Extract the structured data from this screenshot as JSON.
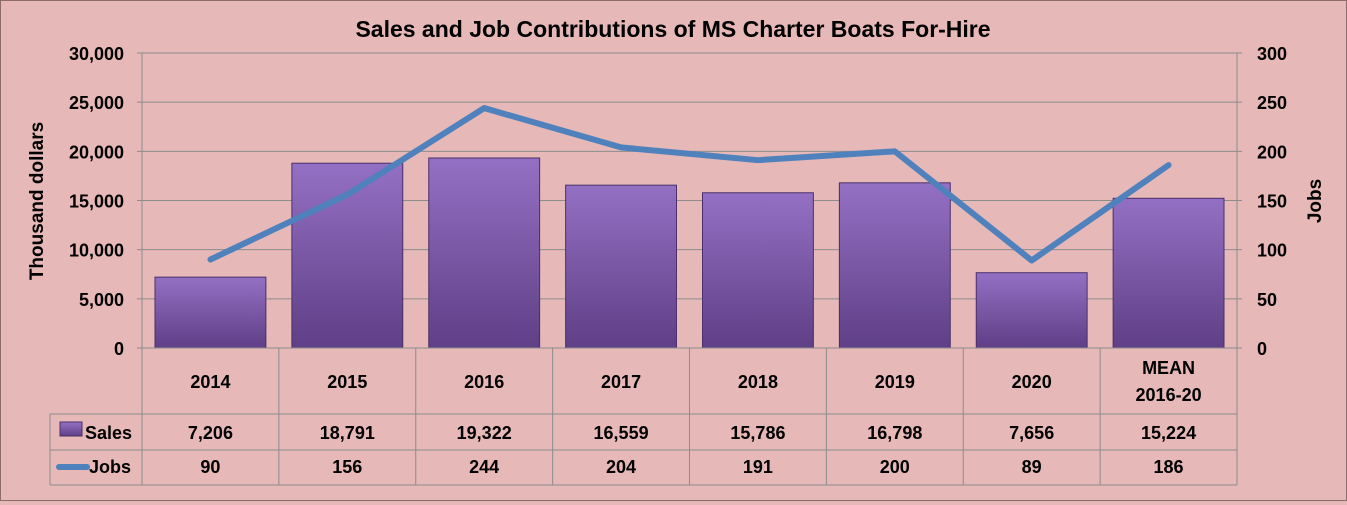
{
  "chart_data": {
    "type": "bar",
    "title": "Sales and Job Contributions of MS Charter Boats For-Hire",
    "ylabel_left": "Thousand dollars",
    "ylabel_right": "Jobs",
    "ylim_left": [
      0,
      30000
    ],
    "ylim_right": [
      0,
      300
    ],
    "yticks_left": [
      "0",
      "5,000",
      "10,000",
      "15,000",
      "20,000",
      "25,000",
      "30,000"
    ],
    "yticks_right": [
      "0",
      "50",
      "100",
      "150",
      "200",
      "250",
      "300"
    ],
    "grid": true,
    "legend": "data-table",
    "categories": [
      {
        "line1": "2014",
        "line2": ""
      },
      {
        "line1": "2015",
        "line2": ""
      },
      {
        "line1": "2016",
        "line2": ""
      },
      {
        "line1": "2017",
        "line2": ""
      },
      {
        "line1": "2018",
        "line2": ""
      },
      {
        "line1": "2019",
        "line2": ""
      },
      {
        "line1": "2020",
        "line2": ""
      },
      {
        "line1": "MEAN",
        "line2": "2016-20"
      }
    ],
    "series": [
      {
        "name": "Sales",
        "type": "bar",
        "axis": "left",
        "color": "#7e5aa8",
        "values": [
          7206,
          18791,
          19322,
          16559,
          15786,
          16798,
          7656,
          15224
        ],
        "labels": [
          "7,206",
          "18,791",
          "19,322",
          "16,559",
          "15,786",
          "16,798",
          "7,656",
          "15,224"
        ]
      },
      {
        "name": "Jobs",
        "type": "line",
        "axis": "right",
        "color": "#4f81bd",
        "values": [
          90,
          156,
          244,
          204,
          191,
          200,
          89,
          186
        ],
        "labels": [
          "90",
          "156",
          "244",
          "204",
          "191",
          "200",
          "89",
          "186"
        ]
      }
    ]
  }
}
